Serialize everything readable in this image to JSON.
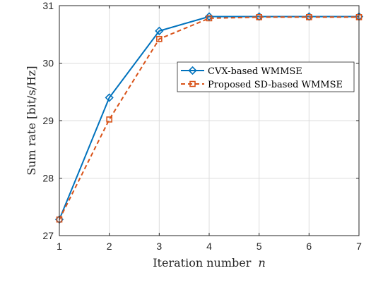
{
  "chart_data": {
    "type": "line",
    "title": "",
    "xlabel": "Iteration number",
    "xlabel_var": "n",
    "ylabel": "Sum rate [bit/s/Hz]",
    "xlim": [
      1,
      7
    ],
    "ylim": [
      27,
      31
    ],
    "xticks": [
      1,
      2,
      3,
      4,
      5,
      6,
      7
    ],
    "yticks": [
      27,
      28,
      29,
      30,
      31
    ],
    "grid": true,
    "legend_position": "center-right",
    "x": [
      1,
      2,
      3,
      4,
      5,
      6,
      7
    ],
    "series": [
      {
        "name": "CVX-based WMMSE",
        "values": [
          27.28,
          29.4,
          30.56,
          30.81,
          30.81,
          30.81,
          30.81
        ],
        "color": "#0072BD",
        "line_style": "solid",
        "marker": "diamond-icon"
      },
      {
        "name": "Proposed SD-based WMMSE",
        "values": [
          27.28,
          29.02,
          30.42,
          30.78,
          30.8,
          30.8,
          30.8
        ],
        "color": "#D95319",
        "line_style": "dashed",
        "marker": "square-icon"
      }
    ]
  }
}
